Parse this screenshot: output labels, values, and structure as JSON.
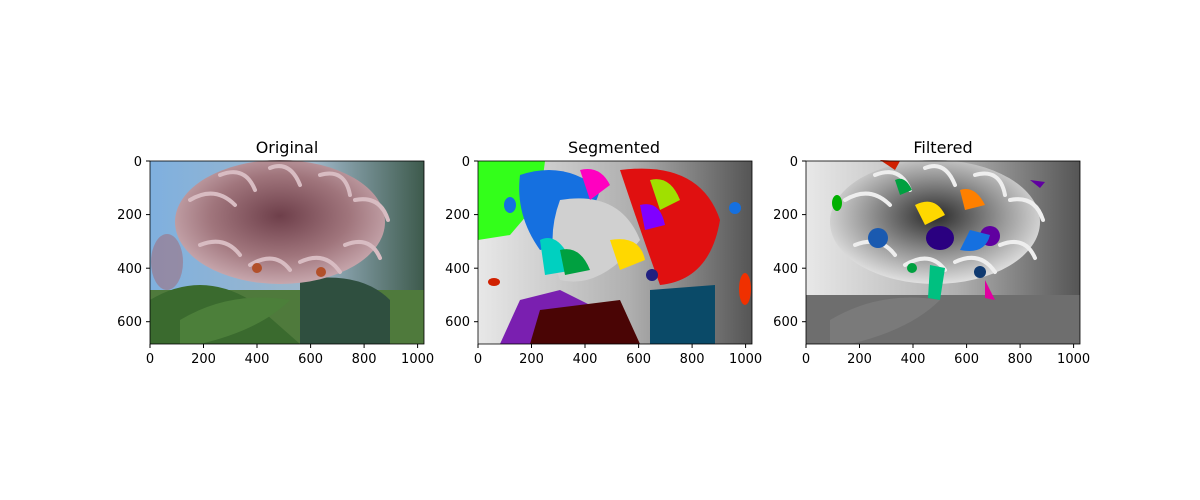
{
  "chart_data": [
    {
      "type": "image",
      "title": "Original",
      "image": "original",
      "xlim": [
        0,
        1024
      ],
      "ylim": [
        683,
        0
      ],
      "xticks": [
        0,
        200,
        400,
        600,
        800,
        1000
      ],
      "yticks": [
        0,
        200,
        400,
        600
      ],
      "xticklabels": [
        "0",
        "200",
        "400",
        "600",
        "800",
        "1000"
      ],
      "yticklabels": [
        "0",
        "200",
        "400",
        "600"
      ]
    },
    {
      "type": "image",
      "title": "Segmented",
      "image": "segmented",
      "xlim": [
        0,
        1024
      ],
      "ylim": [
        683,
        0
      ],
      "xticks": [
        0,
        200,
        400,
        600,
        800,
        1000
      ],
      "yticks": [
        0,
        200,
        400,
        600
      ],
      "xticklabels": [
        "0",
        "200",
        "400",
        "600",
        "800",
        "1000"
      ],
      "yticklabels": [
        "0",
        "200",
        "400",
        "600"
      ]
    },
    {
      "type": "image",
      "title": "Filtered",
      "image": "filtered",
      "xlim": [
        0,
        1024
      ],
      "ylim": [
        683,
        0
      ],
      "xticks": [
        0,
        200,
        400,
        600,
        800,
        1000
      ],
      "yticks": [
        0,
        200,
        400,
        600
      ],
      "xticklabels": [
        "0",
        "200",
        "400",
        "600",
        "800",
        "1000"
      ],
      "yticklabels": [
        "0",
        "200",
        "400",
        "600"
      ]
    }
  ],
  "colors": {
    "original_sky": "#8fb3d1",
    "original_flower": "#8c5a63",
    "original_leaves": "#3f6a35",
    "segment_green": "#33ff1a",
    "segment_blue": "#1570e0",
    "segment_red": "#e01010",
    "segment_purple": "#7a1fb0",
    "segment_teal": "#0a5070",
    "filtered_gray": "#8a8a8a"
  }
}
